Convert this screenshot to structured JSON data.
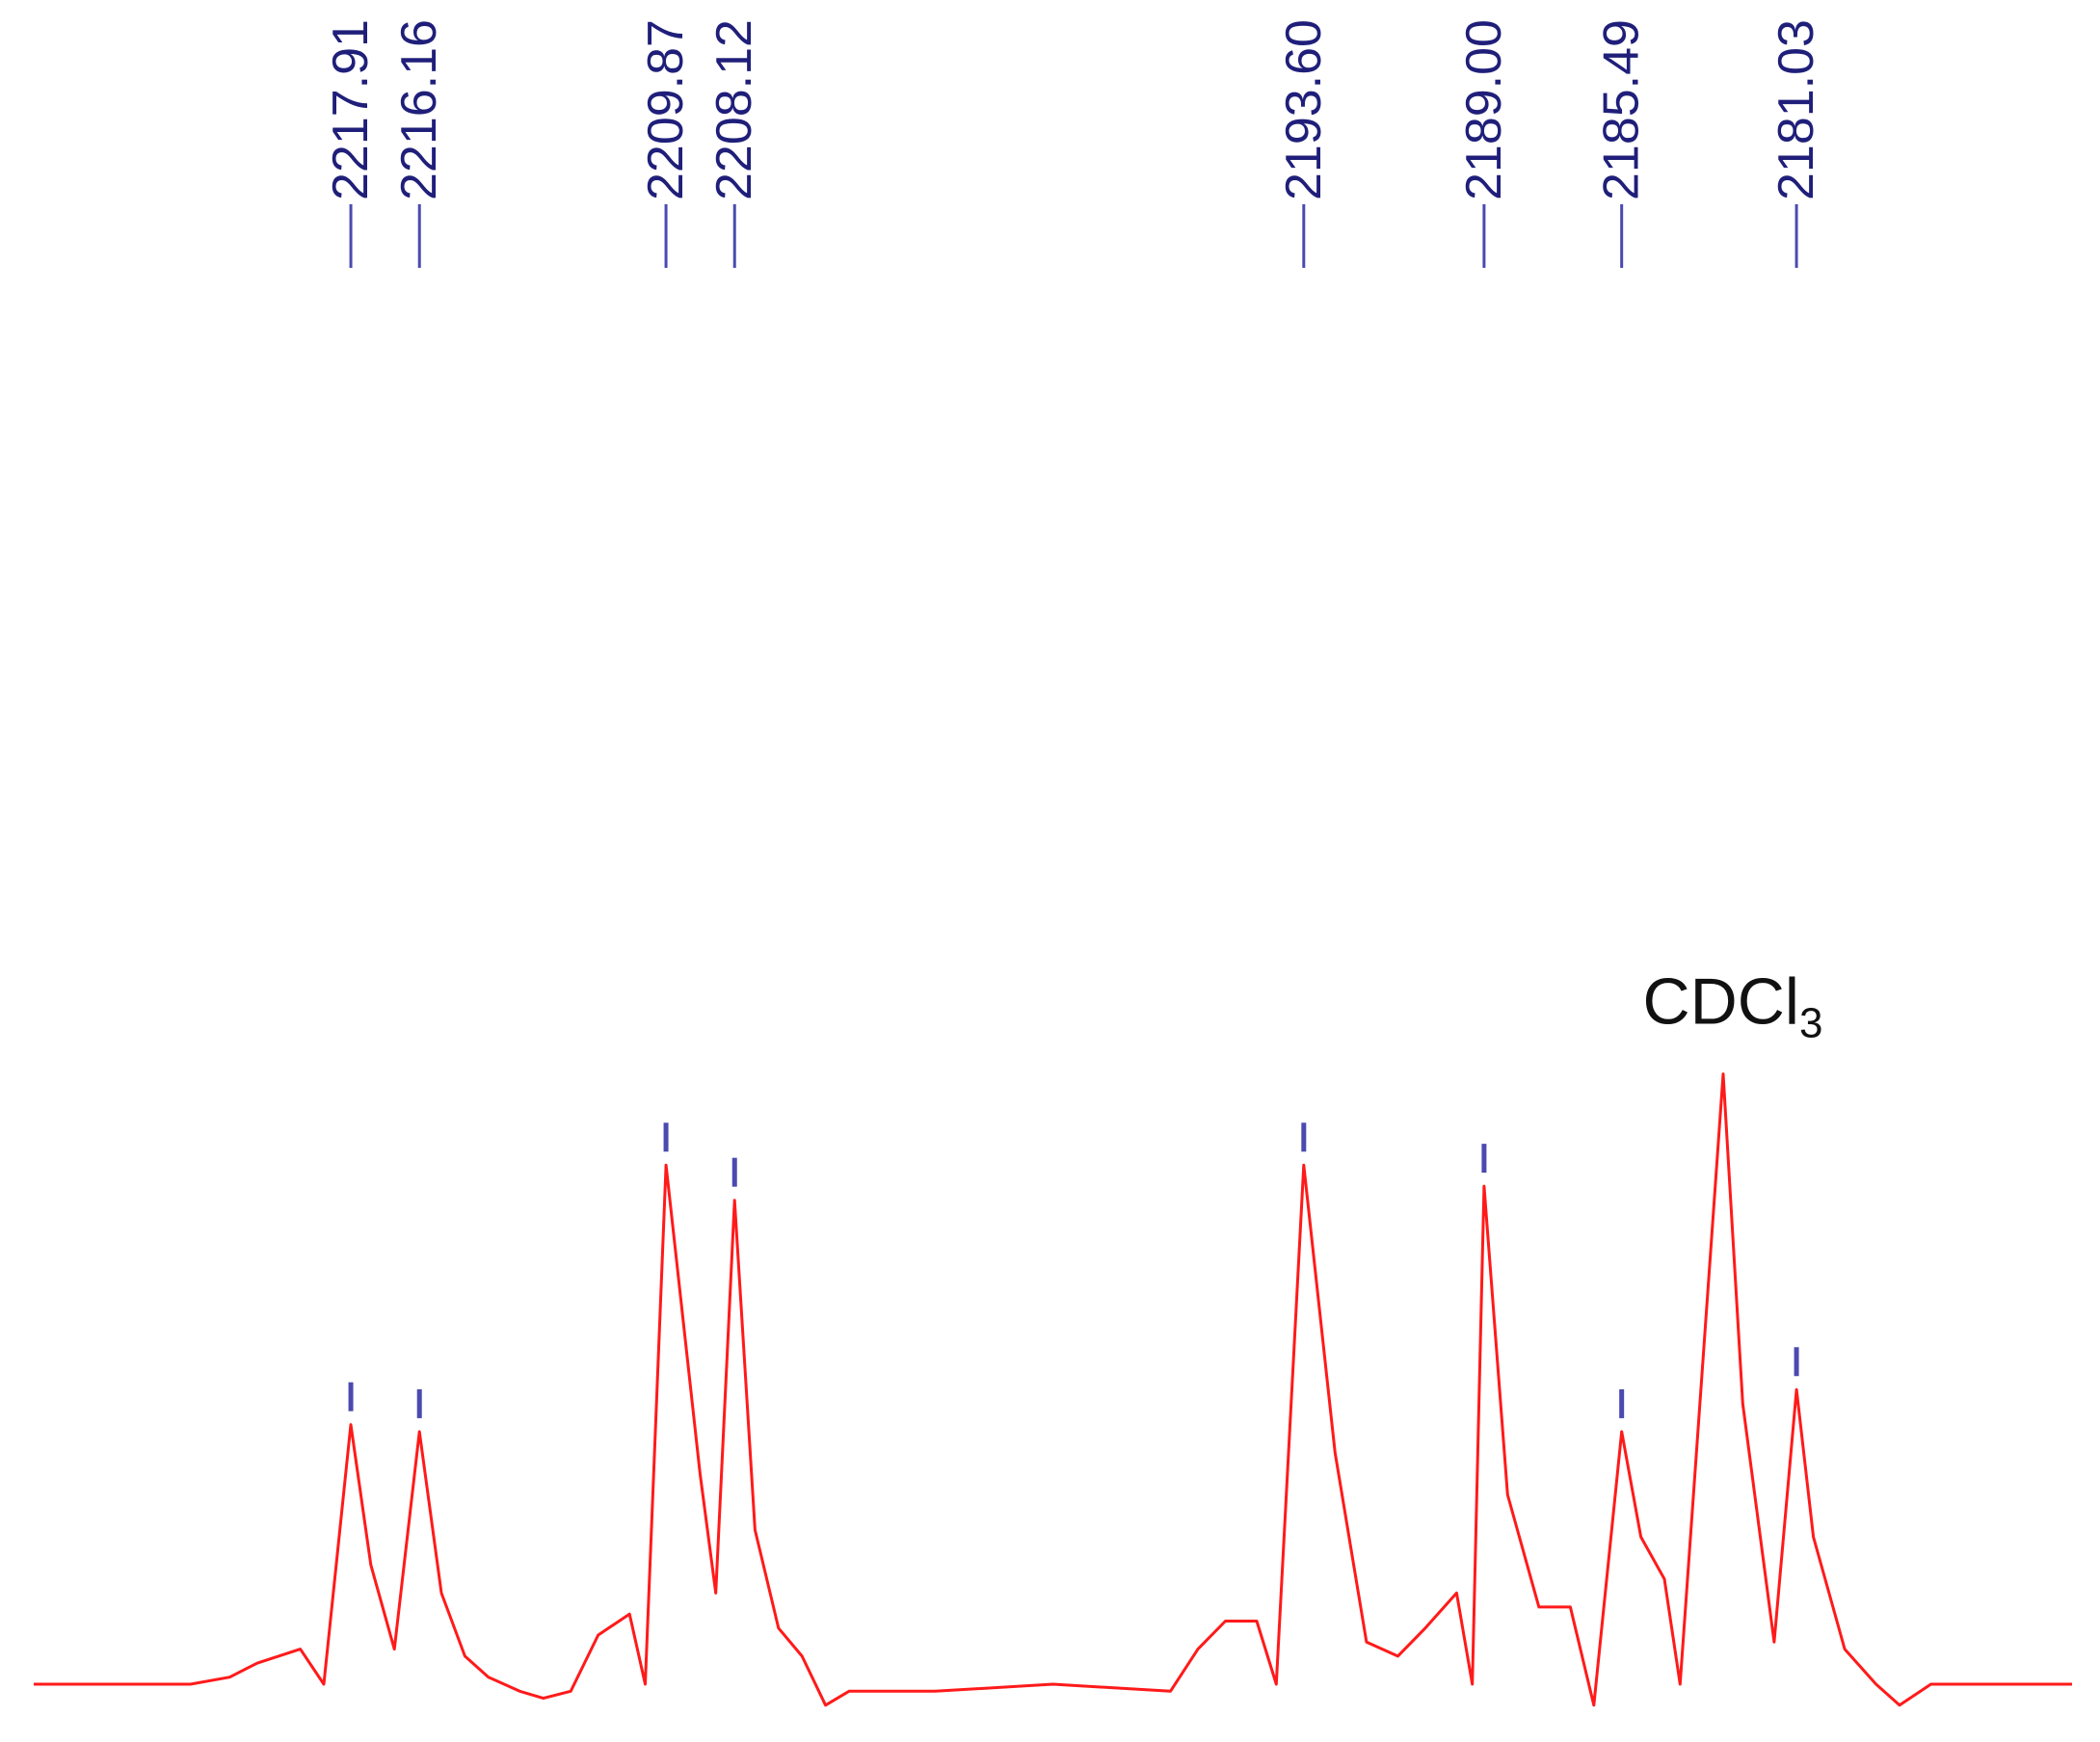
{
  "chart_data": {
    "type": "line",
    "title": "",
    "xlabel": "",
    "ylabel": "",
    "x_axis": "Frequency (Hz), decreasing left to right",
    "xlim": [
      2226,
      2174
    ],
    "ylim": [
      -0.05,
      1.0
    ],
    "grid": false,
    "colors": {
      "spectrum": "#ff1a1a",
      "peak_marker": "#4a4ab0",
      "peak_label": "#1f1f7a",
      "annotation": "#111111"
    },
    "peak_labels": [
      "2217.91",
      "2216.16",
      "2209.87",
      "2208.12",
      "2193.60",
      "2189.00",
      "2185.49",
      "2181.03"
    ],
    "peaks": [
      {
        "x": 2217.91,
        "y": 0.37
      },
      {
        "x": 2216.16,
        "y": 0.36
      },
      {
        "x": 2209.87,
        "y": 0.74
      },
      {
        "x": 2208.12,
        "y": 0.69
      },
      {
        "x": 2193.6,
        "y": 0.74
      },
      {
        "x": 2189.0,
        "y": 0.71
      },
      {
        "x": 2185.49,
        "y": 0.36
      },
      {
        "x": 2181.03,
        "y": 0.42
      }
    ],
    "solvent_peak": {
      "x": 2182.9,
      "y": 0.87,
      "label": "CDCl",
      "label_sub": "3"
    },
    "trace": [
      [
        2226.0,
        0.0
      ],
      [
        2222.0,
        0.0
      ],
      [
        2221.0,
        0.01
      ],
      [
        2220.3,
        0.03
      ],
      [
        2219.2,
        0.05
      ],
      [
        2218.6,
        0.0
      ],
      [
        2217.91,
        0.37
      ],
      [
        2217.4,
        0.17
      ],
      [
        2216.8,
        0.05
      ],
      [
        2216.16,
        0.36
      ],
      [
        2215.6,
        0.13
      ],
      [
        2215.0,
        0.04
      ],
      [
        2214.4,
        0.01
      ],
      [
        2213.6,
        -0.01
      ],
      [
        2213.0,
        -0.02
      ],
      [
        2212.3,
        -0.01
      ],
      [
        2211.6,
        0.07
      ],
      [
        2210.8,
        0.1
      ],
      [
        2210.4,
        0.0
      ],
      [
        2209.87,
        0.74
      ],
      [
        2209.0,
        0.3
      ],
      [
        2208.6,
        0.13
      ],
      [
        2208.12,
        0.69
      ],
      [
        2207.6,
        0.22
      ],
      [
        2207.0,
        0.08
      ],
      [
        2206.4,
        0.04
      ],
      [
        2205.8,
        -0.03
      ],
      [
        2205.2,
        -0.01
      ],
      [
        2203.0,
        -0.01
      ],
      [
        2200.0,
        0.0
      ],
      [
        2197.0,
        -0.01
      ],
      [
        2196.3,
        0.05
      ],
      [
        2195.6,
        0.09
      ],
      [
        2194.8,
        0.09
      ],
      [
        2194.3,
        0.0
      ],
      [
        2193.6,
        0.74
      ],
      [
        2192.8,
        0.33
      ],
      [
        2192.0,
        0.06
      ],
      [
        2191.2,
        0.04
      ],
      [
        2190.5,
        0.08
      ],
      [
        2189.7,
        0.13
      ],
      [
        2189.3,
        0.0
      ],
      [
        2189.0,
        0.71
      ],
      [
        2188.4,
        0.27
      ],
      [
        2187.6,
        0.11
      ],
      [
        2186.8,
        0.11
      ],
      [
        2186.2,
        -0.03
      ],
      [
        2185.49,
        0.36
      ],
      [
        2185.0,
        0.21
      ],
      [
        2184.4,
        0.15
      ],
      [
        2184.0,
        0.0
      ],
      [
        2182.9,
        0.87
      ],
      [
        2182.4,
        0.4
      ],
      [
        2181.6,
        0.06
      ],
      [
        2181.03,
        0.42
      ],
      [
        2180.6,
        0.21
      ],
      [
        2179.8,
        0.05
      ],
      [
        2179.0,
        0.0
      ],
      [
        2178.4,
        -0.03
      ],
      [
        2177.6,
        0.0
      ],
      [
        2176.0,
        0.0
      ],
      [
        2174.0,
        0.0
      ]
    ]
  }
}
